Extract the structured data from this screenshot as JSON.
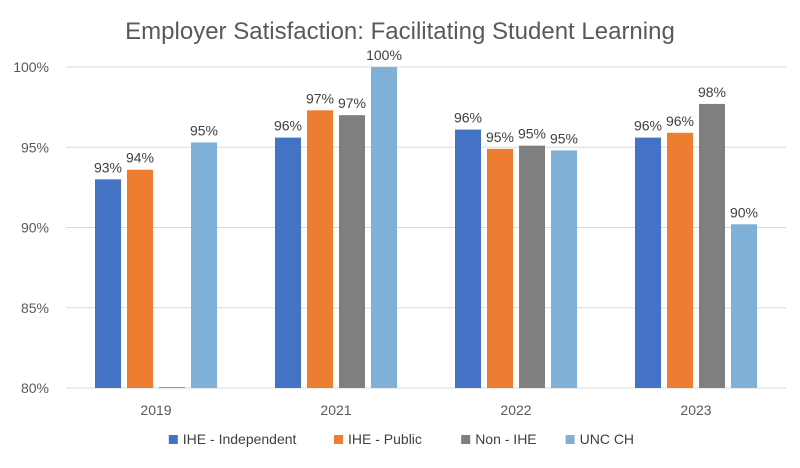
{
  "chart_data": {
    "type": "bar",
    "title": "Employer Satisfaction: Facilitating Student Learning",
    "xlabel": "",
    "ylabel": "",
    "categories": [
      "2019",
      "2021",
      "2022",
      "2023"
    ],
    "ylim": [
      80,
      100
    ],
    "yticks": [
      80,
      85,
      90,
      95,
      100
    ],
    "ytick_labels": [
      "80%",
      "85%",
      "90%",
      "95%",
      "100%"
    ],
    "grid": true,
    "legend_position": "bottom",
    "series": [
      {
        "name": "IHE - Independent",
        "color": "#4472C4",
        "values": [
          93.0,
          95.6,
          96.1,
          95.6
        ],
        "labels": [
          "93%",
          "96%",
          "96%",
          "96%"
        ]
      },
      {
        "name": "IHE - Public",
        "color": "#ED7D31",
        "values": [
          93.6,
          97.3,
          94.9,
          95.9
        ],
        "labels": [
          "94%",
          "97%",
          "95%",
          "96%"
        ]
      },
      {
        "name": "Non - IHE",
        "color": "#7F7F7F",
        "values": [
          80.0,
          97.0,
          95.1,
          97.7
        ],
        "labels": [
          "",
          "97%",
          "95%",
          "98%"
        ]
      },
      {
        "name": "UNC CH",
        "color": "#7EB0D8",
        "values": [
          95.3,
          100.0,
          94.8,
          90.2
        ],
        "labels": [
          "95%",
          "100%",
          "95%",
          "90%"
        ]
      }
    ]
  }
}
